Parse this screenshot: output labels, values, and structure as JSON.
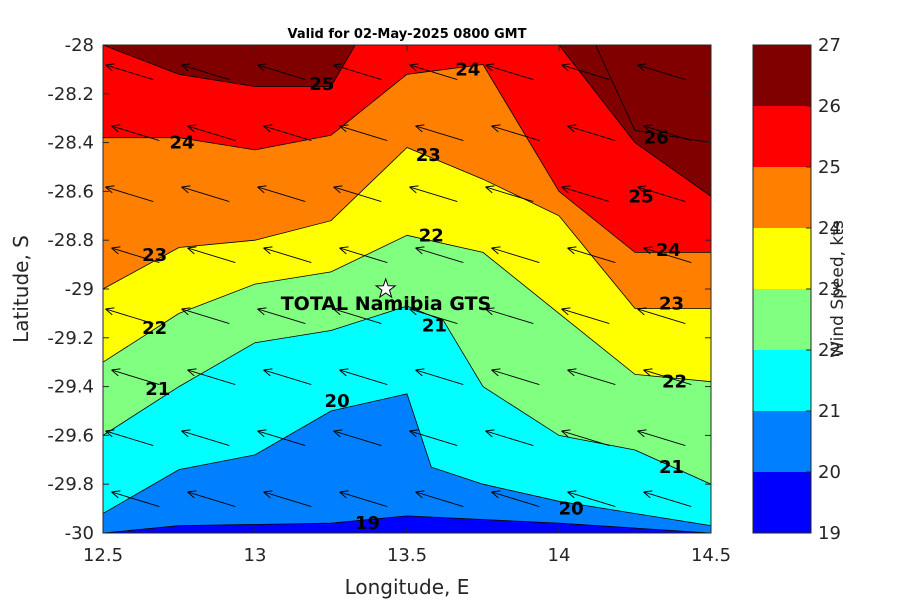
{
  "chart_data": {
    "type": "heatmap",
    "subtype": "filled-contour",
    "title": "Valid for 02-May-2025 0800 GMT",
    "xlabel": "Longitude, E",
    "ylabel": "Latitude, S",
    "xlim": [
      12.5,
      14.5
    ],
    "ylim": [
      -30,
      -28
    ],
    "xticks": [
      12.5,
      13,
      13.5,
      14,
      14.5
    ],
    "xtick_labels": [
      "12.5",
      "13",
      "13.5",
      "14",
      "14.5"
    ],
    "yticks": [
      -28,
      -28.2,
      -28.4,
      -28.6,
      -28.8,
      -29,
      -29.2,
      -29.4,
      -29.6,
      -29.8,
      -30
    ],
    "ytick_labels": [
      "-28",
      "-28.2",
      "-28.4",
      "-28.6",
      "-28.8",
      "-29",
      "-29.2",
      "-29.4",
      "-29.6",
      "-29.8",
      "-30"
    ],
    "colorbar": {
      "label": "Wind Speed, kts",
      "levels": [
        19,
        20,
        21,
        22,
        23,
        24,
        25,
        26,
        27
      ],
      "tick_labels": [
        "19",
        "20",
        "21",
        "22",
        "23",
        "24",
        "25",
        "26",
        "27"
      ],
      "colors": [
        "#0000ff",
        "#0080ff",
        "#00ffff",
        "#80ff80",
        "#ffff00",
        "#ff8000",
        "#ff0000",
        "#800000"
      ]
    },
    "contours": [
      {
        "level": 19,
        "points": [
          [
            12.5,
            -30
          ],
          [
            12.75,
            -29.97
          ],
          [
            13.25,
            -29.96
          ],
          [
            13.5,
            -29.93
          ],
          [
            14,
            -29.96
          ],
          [
            14.5,
            -30
          ]
        ]
      },
      {
        "level": 20,
        "points": [
          [
            12.5,
            -29.92
          ],
          [
            12.75,
            -29.74
          ],
          [
            13,
            -29.68
          ],
          [
            13.25,
            -29.5
          ],
          [
            13.5,
            -29.43
          ],
          [
            13.58,
            -29.73
          ],
          [
            13.75,
            -29.8
          ],
          [
            14,
            -29.87
          ],
          [
            14.25,
            -29.92
          ],
          [
            14.5,
            -29.97
          ]
        ]
      },
      {
        "level": 21,
        "points": [
          [
            12.5,
            -29.6
          ],
          [
            12.75,
            -29.4
          ],
          [
            13,
            -29.22
          ],
          [
            13.25,
            -29.17
          ],
          [
            13.5,
            -29.07
          ],
          [
            13.62,
            -29.13
          ],
          [
            13.75,
            -29.4
          ],
          [
            14,
            -29.6
          ],
          [
            14.25,
            -29.66
          ],
          [
            14.5,
            -29.8
          ]
        ]
      },
      {
        "level": 22,
        "points": [
          [
            12.5,
            -29.3
          ],
          [
            12.75,
            -29.1
          ],
          [
            13,
            -28.98
          ],
          [
            13.25,
            -28.93
          ],
          [
            13.5,
            -28.78
          ],
          [
            13.75,
            -28.85
          ],
          [
            14,
            -29.1
          ],
          [
            14.25,
            -29.35
          ],
          [
            14.5,
            -29.38
          ]
        ]
      },
      {
        "level": 23,
        "points": [
          [
            12.5,
            -29
          ],
          [
            12.75,
            -28.83
          ],
          [
            13,
            -28.8
          ],
          [
            13.25,
            -28.72
          ],
          [
            13.5,
            -28.42
          ],
          [
            13.75,
            -28.55
          ],
          [
            14,
            -28.7
          ],
          [
            14.25,
            -29.08
          ],
          [
            14.5,
            -29.08
          ]
        ]
      },
      {
        "level": 24,
        "points": [
          [
            12.5,
            -28.38
          ],
          [
            12.75,
            -28.38
          ],
          [
            13,
            -28.43
          ],
          [
            13.25,
            -28.37
          ],
          [
            13.5,
            -28.12
          ],
          [
            13.75,
            -28.08
          ],
          [
            14,
            -28.6
          ],
          [
            14.25,
            -28.85
          ],
          [
            14.5,
            -28.85
          ]
        ]
      },
      {
        "level": 25,
        "points": [
          [
            12.5,
            -28
          ],
          [
            12.75,
            -28.12
          ],
          [
            13,
            -28.17
          ],
          [
            13.25,
            -28.17
          ],
          [
            13.33,
            -28
          ],
          [
            14,
            -28
          ],
          [
            14.25,
            -28.4
          ],
          [
            14.5,
            -28.62
          ]
        ]
      },
      {
        "level": 26,
        "points": [
          [
            14.12,
            -28
          ],
          [
            14.25,
            -28.35
          ],
          [
            14.5,
            -28.4
          ]
        ]
      }
    ],
    "contour_labels": [
      {
        "text": "19",
        "lon": 13.37,
        "lat": -29.96
      },
      {
        "text": "20",
        "lon": 13.27,
        "lat": -29.46
      },
      {
        "text": "20",
        "lon": 14.04,
        "lat": -29.9
      },
      {
        "text": "21",
        "lon": 12.68,
        "lat": -29.41
      },
      {
        "text": "21",
        "lon": 13.59,
        "lat": -29.15
      },
      {
        "text": "21",
        "lon": 14.37,
        "lat": -29.73
      },
      {
        "text": "22",
        "lon": 12.67,
        "lat": -29.16
      },
      {
        "text": "22",
        "lon": 13.58,
        "lat": -28.78
      },
      {
        "text": "22",
        "lon": 14.38,
        "lat": -29.38
      },
      {
        "text": "23",
        "lon": 12.67,
        "lat": -28.86
      },
      {
        "text": "23",
        "lon": 13.57,
        "lat": -28.45
      },
      {
        "text": "23",
        "lon": 14.37,
        "lat": -29.06
      },
      {
        "text": "24",
        "lon": 12.76,
        "lat": -28.4
      },
      {
        "text": "24",
        "lon": 13.7,
        "lat": -28.1
      },
      {
        "text": "24",
        "lon": 14.36,
        "lat": -28.84
      },
      {
        "text": "25",
        "lon": 13.22,
        "lat": -28.16
      },
      {
        "text": "25",
        "lon": 14.27,
        "lat": -28.62
      },
      {
        "text": "26",
        "lon": 14.32,
        "lat": -28.38
      }
    ],
    "wind_vectors": {
      "description": "Arrows point from ESE toward WNW across the grid",
      "direction_deg_from_east": 163,
      "grid_lon": [
        12.58,
        12.83,
        13.08,
        13.33,
        13.58,
        13.83,
        14.08,
        14.33
      ],
      "grid_lat": [
        -28.15,
        -28.4,
        -28.65,
        -28.9,
        -29.15,
        -29.4,
        -29.65,
        -29.9
      ]
    },
    "station": {
      "name": "TOTAL Namibia GTS",
      "lon": 13.43,
      "lat": -29.0,
      "marker": "star"
    },
    "grid": false
  }
}
